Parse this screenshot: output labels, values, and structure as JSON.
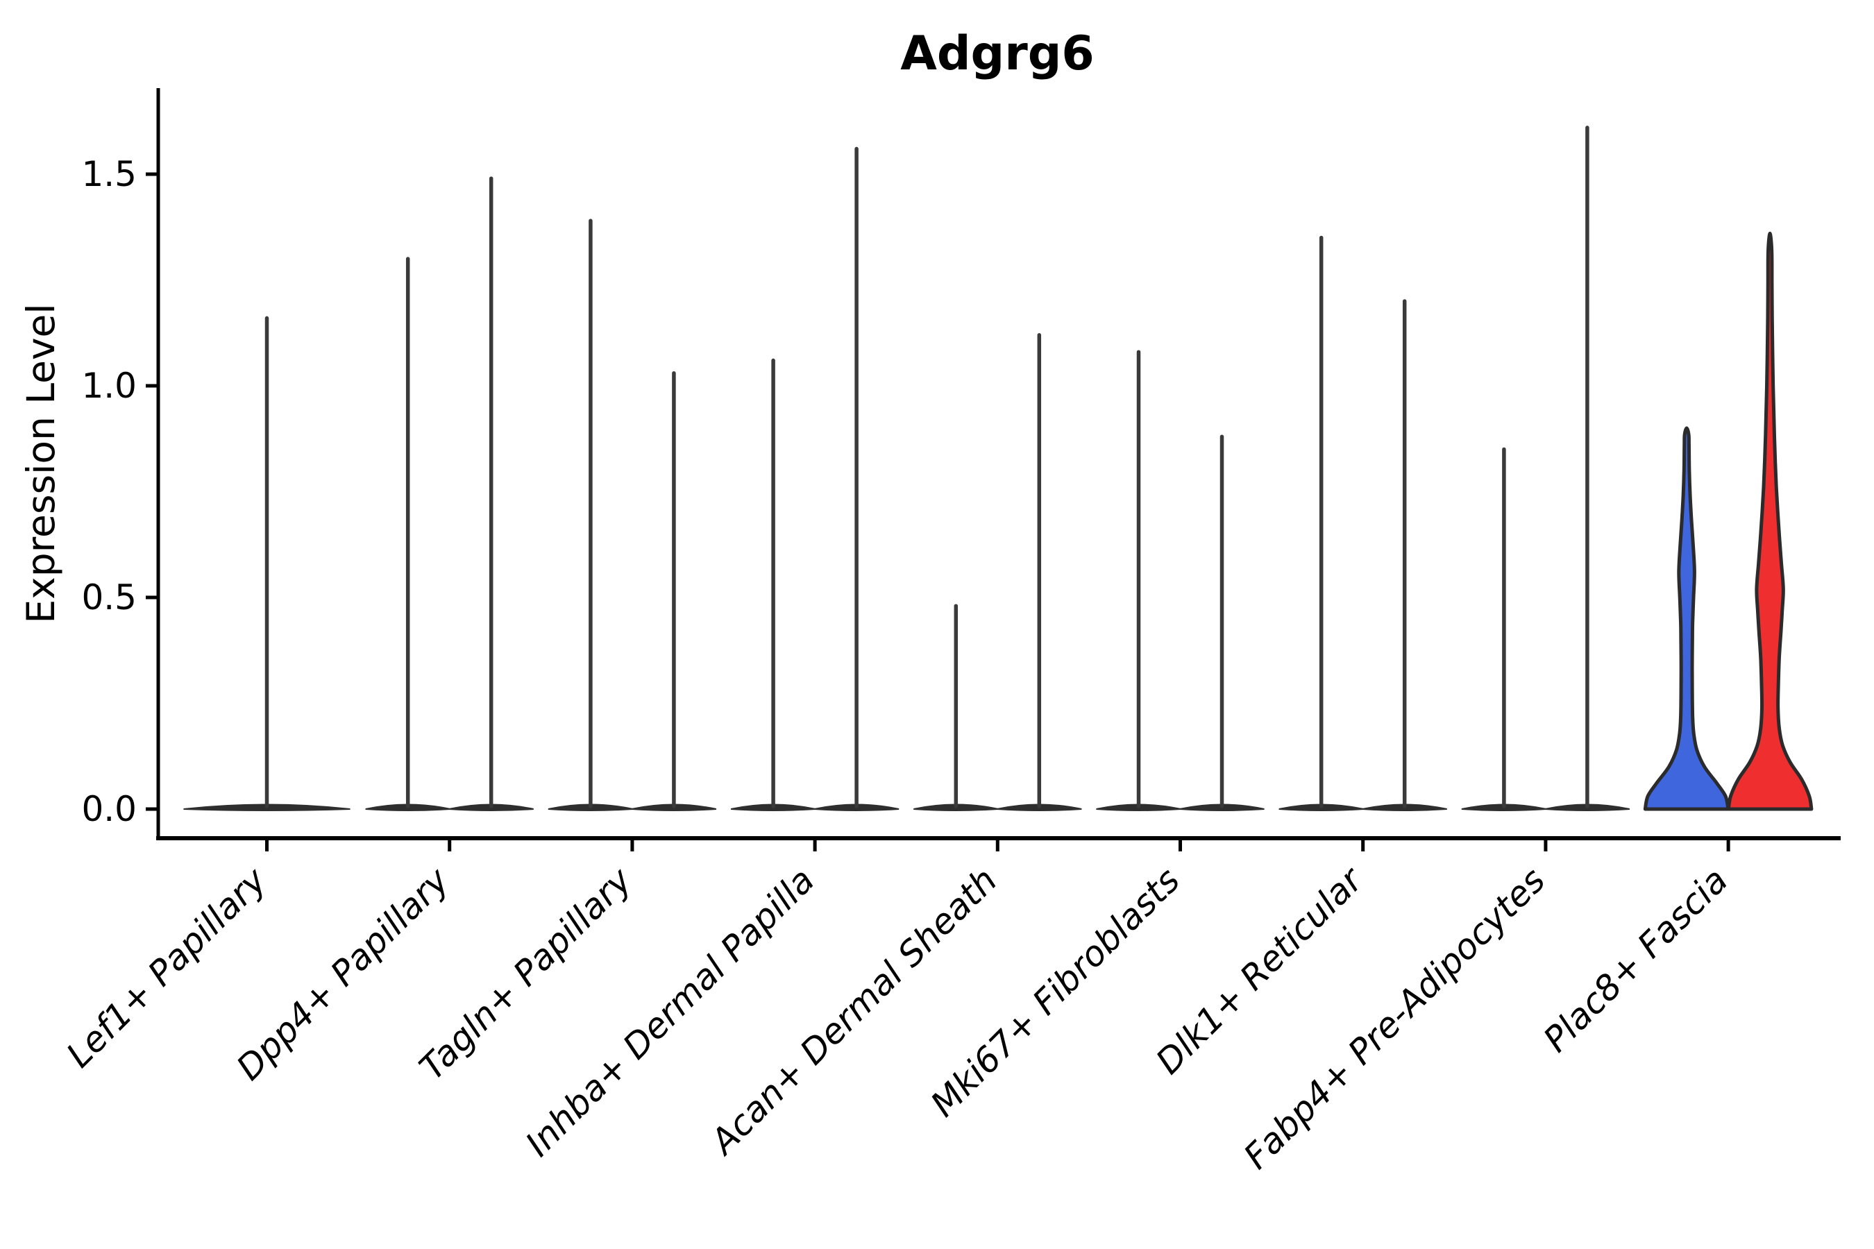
{
  "figure": {
    "title": "Adgrg6"
  },
  "chart_data": {
    "type": "violin",
    "title": "Adgrg6",
    "xlabel": "",
    "ylabel": "Expression Level",
    "grid": false,
    "legend_position": "none",
    "yticks": [
      {
        "label": "0.0",
        "value": 0.0
      },
      {
        "label": "0.5",
        "value": 0.5
      },
      {
        "label": "1.0",
        "value": 1.0
      },
      {
        "label": "1.5",
        "value": 1.5
      }
    ],
    "ylim": [
      -0.07,
      1.7
    ],
    "split_groups": 2,
    "colors": {
      "blue_fill": "#3F66DC",
      "red_fill": "#EF2F2F",
      "violin_outline": "#2b2b2b",
      "spike_stroke": "#3a3a3a",
      "base_fill": "#2e2e2e",
      "axis": "#000000"
    },
    "categories": [
      {
        "label": "Lef1+ Papillary",
        "violins": [
          {
            "side": "center",
            "shape": "spike",
            "max_expression": 1.16
          }
        ]
      },
      {
        "label": "Dpp4+ Papillary",
        "violins": [
          {
            "side": "left",
            "shape": "spike",
            "max_expression": 1.3
          },
          {
            "side": "right",
            "shape": "spike",
            "max_expression": 1.49
          }
        ]
      },
      {
        "label": "Tagln+ Papillary",
        "violins": [
          {
            "side": "left",
            "shape": "spike",
            "max_expression": 1.39
          },
          {
            "side": "right",
            "shape": "spike",
            "max_expression": 1.03
          }
        ]
      },
      {
        "label": "Inhba+ Dermal Papilla",
        "violins": [
          {
            "side": "left",
            "shape": "spike",
            "max_expression": 1.06
          },
          {
            "side": "right",
            "shape": "spike",
            "max_expression": 1.56
          }
        ]
      },
      {
        "label": "Acan+ Dermal Sheath",
        "violins": [
          {
            "side": "left",
            "shape": "spike",
            "max_expression": 0.48
          },
          {
            "side": "right",
            "shape": "spike",
            "max_expression": 1.12
          }
        ]
      },
      {
        "label": "Mki67+ Fibroblasts",
        "violins": [
          {
            "side": "left",
            "shape": "spike",
            "max_expression": 1.08
          },
          {
            "side": "right",
            "shape": "spike",
            "max_expression": 0.88
          }
        ]
      },
      {
        "label": "Dlk1+ Reticular",
        "violins": [
          {
            "side": "left",
            "shape": "spike",
            "max_expression": 1.35
          },
          {
            "side": "right",
            "shape": "spike",
            "max_expression": 1.2
          }
        ]
      },
      {
        "label": "Fabp4+ Pre-Adipocytes",
        "violins": [
          {
            "side": "left",
            "shape": "spike",
            "max_expression": 0.85
          },
          {
            "side": "right",
            "shape": "spike",
            "max_expression": 1.61
          }
        ]
      },
      {
        "label": "Plac8+ Fascia",
        "violins": [
          {
            "side": "left",
            "shape": "violin",
            "max_expression": 0.9,
            "color_key": "blue_fill",
            "profile": [
              [
                0.0,
                0.98
              ],
              [
                0.03,
                0.92
              ],
              [
                0.06,
                0.72
              ],
              [
                0.1,
                0.42
              ],
              [
                0.14,
                0.24
              ],
              [
                0.18,
                0.165
              ],
              [
                0.22,
                0.14
              ],
              [
                0.28,
                0.132
              ],
              [
                0.34,
                0.13
              ],
              [
                0.4,
                0.135
              ],
              [
                0.44,
                0.14
              ],
              [
                0.5,
                0.162
              ],
              [
                0.56,
                0.185
              ],
              [
                0.62,
                0.155
              ],
              [
                0.68,
                0.115
              ],
              [
                0.74,
                0.082
              ],
              [
                0.8,
                0.062
              ],
              [
                0.86,
                0.055
              ],
              [
                0.885,
                0.048
              ]
            ]
          },
          {
            "side": "right",
            "shape": "violin",
            "max_expression": 1.36,
            "color_key": "red_fill",
            "profile": [
              [
                0.0,
                0.98
              ],
              [
                0.03,
                0.93
              ],
              [
                0.07,
                0.75
              ],
              [
                0.11,
                0.48
              ],
              [
                0.15,
                0.3
              ],
              [
                0.19,
                0.22
              ],
              [
                0.24,
                0.19
              ],
              [
                0.3,
                0.2
              ],
              [
                0.36,
                0.22
              ],
              [
                0.42,
                0.26
              ],
              [
                0.47,
                0.29
              ],
              [
                0.52,
                0.315
              ],
              [
                0.58,
                0.27
              ],
              [
                0.64,
                0.225
              ],
              [
                0.7,
                0.185
              ],
              [
                0.76,
                0.15
              ],
              [
                0.82,
                0.125
              ],
              [
                0.88,
                0.105
              ],
              [
                0.94,
                0.09
              ],
              [
                1.0,
                0.075
              ],
              [
                1.08,
                0.062
              ],
              [
                1.16,
                0.052
              ],
              [
                1.24,
                0.047
              ],
              [
                1.32,
                0.042
              ]
            ]
          }
        ]
      }
    ]
  }
}
